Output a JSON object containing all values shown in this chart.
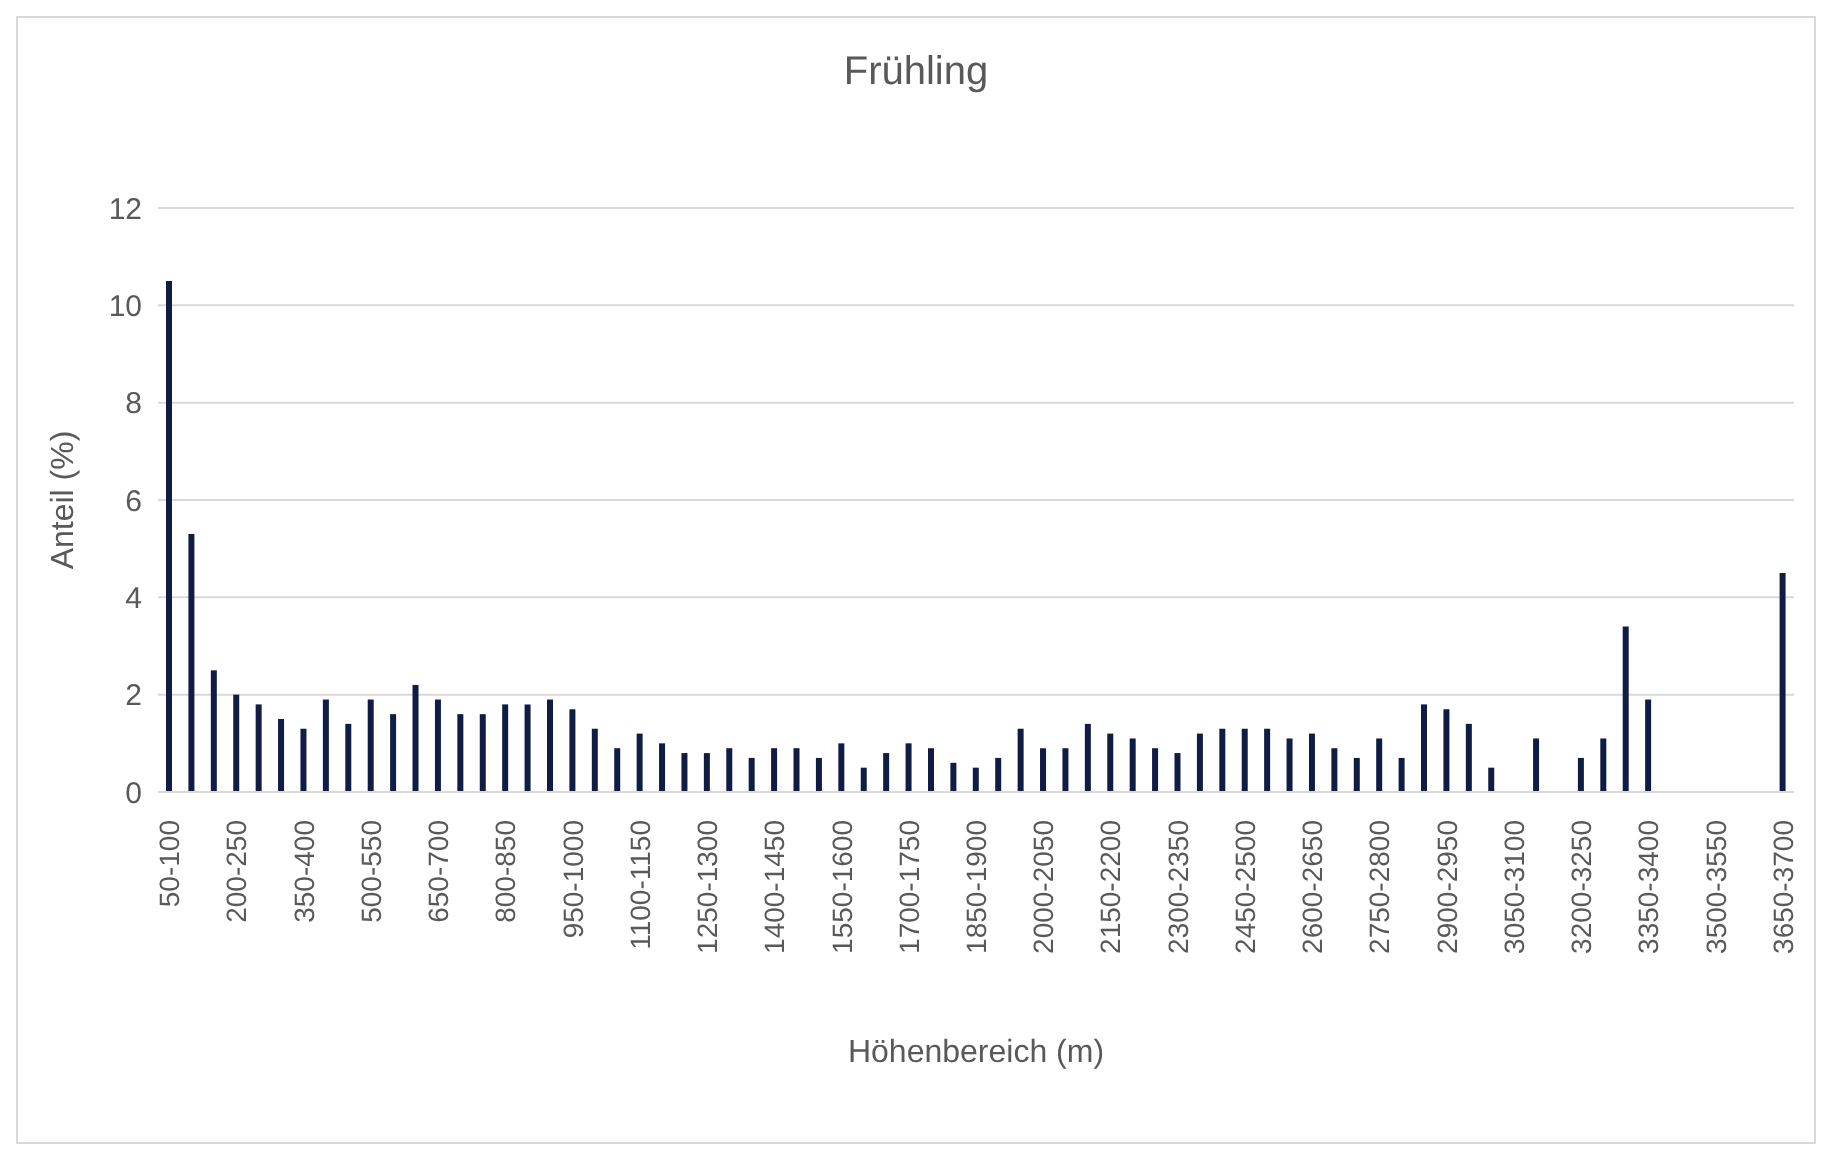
{
  "chart_data": {
    "type": "bar",
    "title": "Frühling",
    "xlabel": "Höhenbereich (m)",
    "ylabel": "Anteil (%)",
    "categories": [
      "50-100",
      null,
      null,
      "200-250",
      null,
      null,
      "350-400",
      null,
      null,
      "500-550",
      null,
      null,
      "650-700",
      null,
      null,
      "800-850",
      null,
      null,
      "950-1000",
      null,
      null,
      "1100-1150",
      null,
      null,
      "1250-1300",
      null,
      null,
      "1400-1450",
      null,
      null,
      "1550-1600",
      null,
      null,
      "1700-1750",
      null,
      null,
      "1850-1900",
      null,
      null,
      "2000-2050",
      null,
      null,
      "2150-2200",
      null,
      null,
      "2300-2350",
      null,
      null,
      "2450-2500",
      null,
      null,
      "2600-2650",
      null,
      null,
      "2750-2800",
      null,
      null,
      "2900-2950",
      null,
      null,
      "3050-3100",
      null,
      null,
      "3200-3250",
      null,
      null,
      "3350-3400",
      null,
      null,
      "3500-3550",
      null,
      null,
      "3650-3700"
    ],
    "values": [
      10.5,
      5.3,
      2.5,
      2.0,
      1.8,
      1.5,
      1.3,
      1.9,
      1.4,
      1.9,
      1.6,
      2.2,
      1.9,
      1.6,
      1.6,
      1.8,
      1.8,
      1.9,
      1.7,
      1.3,
      0.9,
      1.2,
      1.0,
      0.8,
      0.8,
      0.9,
      0.7,
      0.9,
      0.9,
      0.7,
      1.0,
      0.5,
      0.8,
      1.0,
      0.9,
      0.6,
      0.5,
      0.7,
      1.3,
      0.9,
      0.9,
      1.4,
      1.2,
      1.1,
      0.9,
      0.8,
      1.2,
      1.3,
      1.3,
      1.3,
      1.1,
      1.2,
      0.9,
      0.7,
      1.1,
      0.7,
      1.8,
      1.7,
      1.4,
      0.5,
      null,
      1.1,
      null,
      0.7,
      1.1,
      3.4,
      1.9,
      null,
      null,
      null,
      null,
      null,
      4.5
    ],
    "color": "#0f1d45",
    "ylim": [
      0,
      12
    ],
    "yticks": [
      0,
      2,
      4,
      6,
      8,
      10,
      12
    ],
    "grid": "y"
  }
}
